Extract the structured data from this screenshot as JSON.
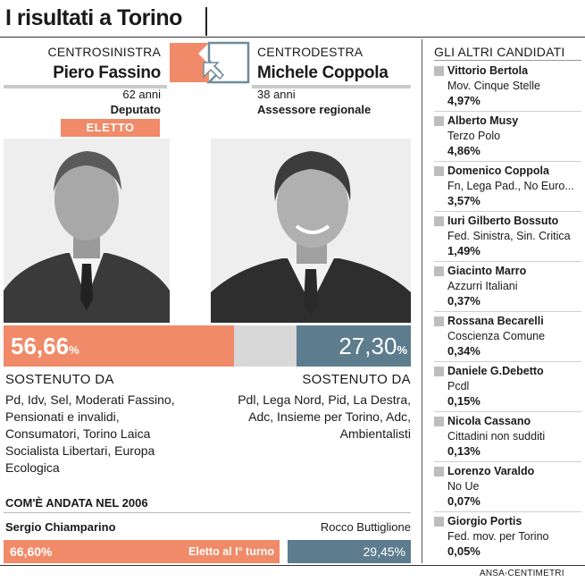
{
  "title": "I risultati a Torino",
  "left": {
    "coalition": "CENTROSINISTRA",
    "name": "Piero Fassino",
    "age": "62 anni",
    "role": "Deputato",
    "badge": "ELETTO",
    "percent": "56,66",
    "percent_sign": "%",
    "share": 0.5666,
    "supported_label": "SOSTENUTO DA",
    "parties": [
      "Pd, Idv, Sel, Moderati Fassino,",
      "Pensionati e invalidi,",
      "Consumatori, Torino Laica",
      "Socialista Libertari, Europa",
      "Ecologica"
    ]
  },
  "right": {
    "coalition": "CENTRODESTRA",
    "name": "Michele Coppola",
    "age": "38 anni",
    "role": "Assessore regionale",
    "percent": "27,30",
    "percent_sign": "%",
    "share": 0.273,
    "supported_label": "SOSTENUTO DA",
    "parties": [
      "Pdl, Lega Nord, Pid, La Destra,",
      "Adc, Insieme per Torino, Adc,",
      "Ambientalisti"
    ]
  },
  "history": {
    "title": "COM'È ANDATA NEL 2006",
    "left_name": "Sergio Chiamparino",
    "left_percent": "66,60%",
    "left_note": "Eletto al I° turno",
    "right_name": "Rocco Buttiglione",
    "right_percent": "29,45%"
  },
  "others": {
    "title": "GLI ALTRI CANDIDATI",
    "candidates": [
      {
        "name": "Vittorio Bertola",
        "party": "Mov. Cinque Stelle",
        "percent": "4,97%"
      },
      {
        "name": "Alberto Musy",
        "party": "Terzo Polo",
        "percent": "4,86%"
      },
      {
        "name": "Domenico Coppola",
        "party": "Fn, Lega Pad., No Euro...",
        "percent": "3,57%"
      },
      {
        "name": "Iuri Gilberto Bossuto",
        "party": "Fed. Sinistra, Sin. Critica",
        "percent": "1,49%"
      },
      {
        "name": "Giacinto Marro",
        "party": "Azzurri Italiani",
        "percent": "0,37%"
      },
      {
        "name": "Rossana Becarelli",
        "party": "Coscienza Comune",
        "percent": "0,34%"
      },
      {
        "name": "Daniele G.Debetto",
        "party": "Pcdl",
        "percent": "0,15%"
      },
      {
        "name": "Nicola Cassano",
        "party": "Cittadini non sudditi",
        "percent": "0,13%"
      },
      {
        "name": "Lorenzo Varaldo",
        "party": "No Ue",
        "percent": "0,07%"
      },
      {
        "name": "Giorgio Portis",
        "party": "Fed. mov. per Torino",
        "percent": "0,05%"
      }
    ]
  },
  "footer": "ANSA-CENTIMETRI",
  "colors": {
    "left": "#f08a68",
    "right": "#5d7c8d",
    "neutral": "#d8d8d8"
  }
}
